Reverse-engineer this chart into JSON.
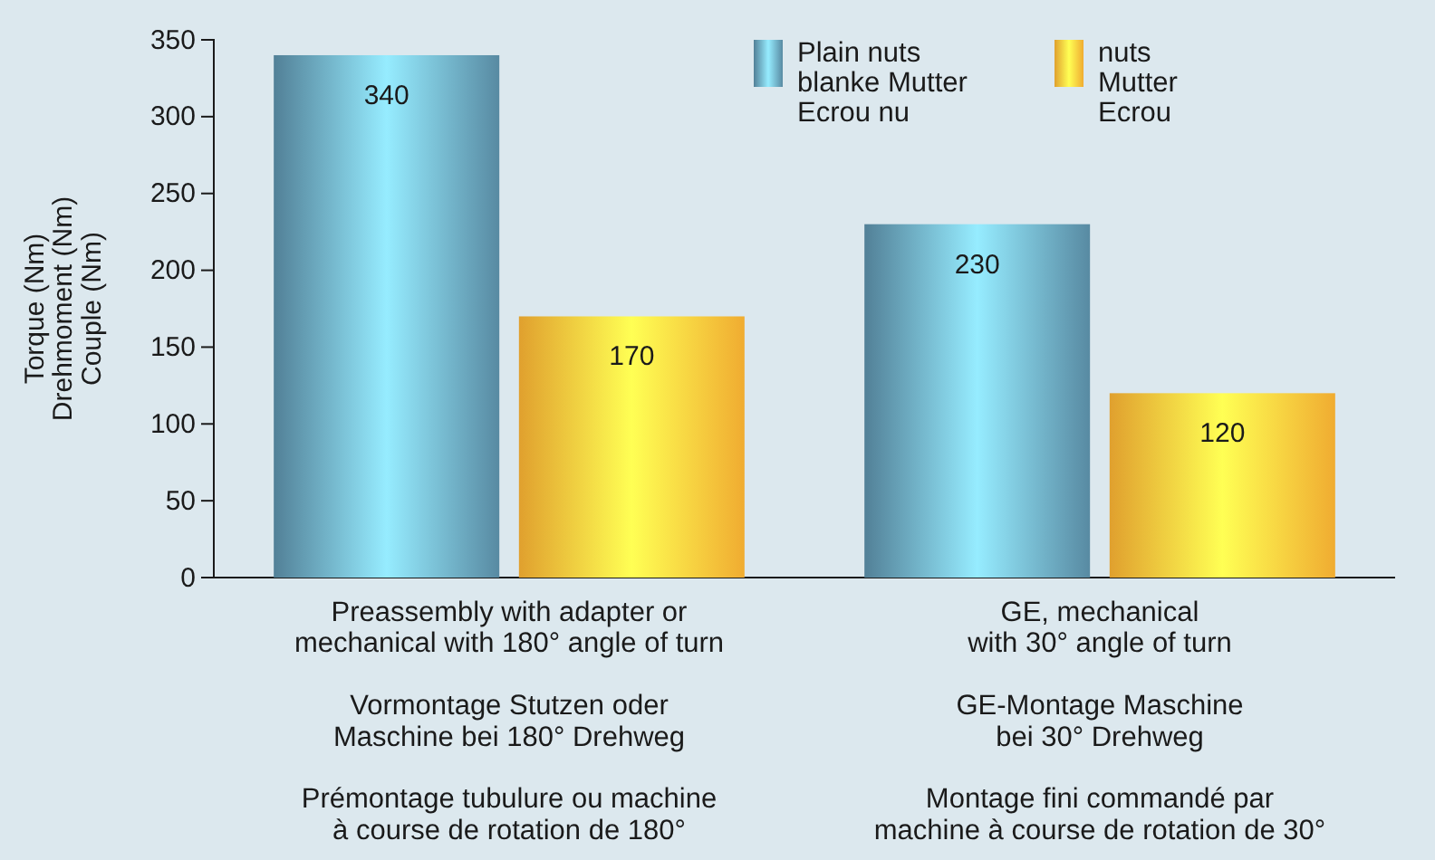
{
  "chart_data": {
    "type": "bar",
    "ylabel": "Torque (Nm)\nDrehmoment (Nm)\nCouple (Nm)",
    "categories": [
      "Preassembly with adapter or\nmechanical with 180° angle of turn\n\nVormontage Stutzen oder\nMaschine bei 180° Drehweg\n\nPrémontage tubulure ou machine\nà course de rotation de 180°",
      "GE, mechanical\nwith 30° angle of turn\n\nGE-Montage Maschine\nbei 30° Drehweg\n\nMontage fini commandé par\nmachine à course de rotation de 30°"
    ],
    "series": [
      {
        "name": "Plain nuts\nblanke Mutter\nEcrou nu",
        "color": "#5b8fa8",
        "values": [
          340,
          230
        ]
      },
      {
        "name": "nuts\nMutter\nEcrou",
        "color": "#f9b233",
        "values": [
          170,
          120
        ]
      }
    ],
    "ylim": [
      0,
      350
    ],
    "yticks": [
      0,
      50,
      100,
      150,
      200,
      250,
      300,
      350
    ],
    "data_labels": true,
    "legend": "top right",
    "grid": false
  }
}
